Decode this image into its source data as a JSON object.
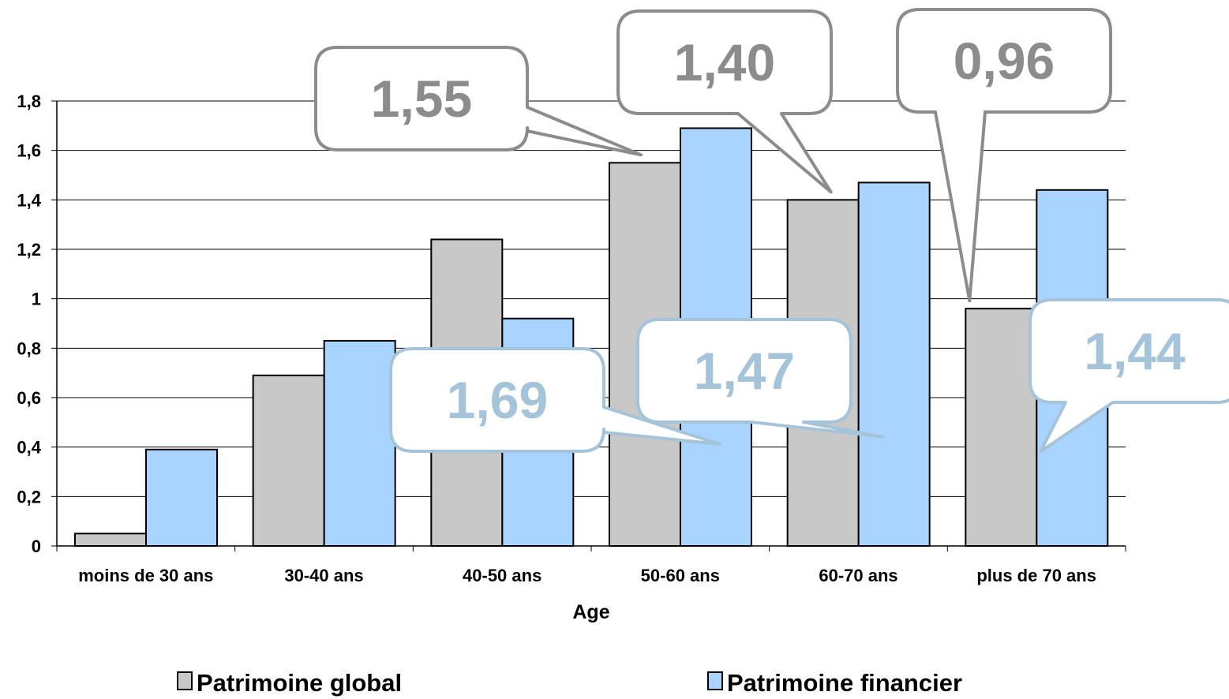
{
  "chart_data": {
    "type": "bar",
    "title": "",
    "xlabel": "Age",
    "ylabel": "",
    "ylim": [
      0,
      1.8
    ],
    "yticks": [
      "0",
      "0,2",
      "0,4",
      "0,6",
      "0,8",
      "1",
      "1,2",
      "1,4",
      "1,6",
      "1,8"
    ],
    "categories": [
      "moins de 30 ans",
      "30-40 ans",
      "40-50 ans",
      "50-60 ans",
      "60-70 ans",
      "plus de 70 ans"
    ],
    "series": [
      {
        "name": "Patrimoine global",
        "color": "#c8c8c8",
        "values": [
          0.05,
          0.69,
          1.24,
          1.55,
          1.4,
          0.96
        ]
      },
      {
        "name": "Patrimoine financier",
        "color": "#a8d4ff",
        "values": [
          0.39,
          0.83,
          0.92,
          1.69,
          1.47,
          1.44
        ]
      }
    ],
    "grid": true,
    "legend_position": "bottom",
    "annotations": [
      {
        "text": "1,55",
        "series": 0,
        "category": 3,
        "color": "#8c8c8c"
      },
      {
        "text": "1,40",
        "series": 0,
        "category": 4,
        "color": "#8c8c8c"
      },
      {
        "text": "0,96",
        "series": 0,
        "category": 5,
        "color": "#8c8c8c"
      },
      {
        "text": "1,69",
        "series": 1,
        "category": 3,
        "color": "#a5c3d9"
      },
      {
        "text": "1,47",
        "series": 1,
        "category": 4,
        "color": "#a5c3d9"
      },
      {
        "text": "1,44",
        "series": 1,
        "category": 5,
        "color": "#a5c3d9"
      }
    ]
  }
}
